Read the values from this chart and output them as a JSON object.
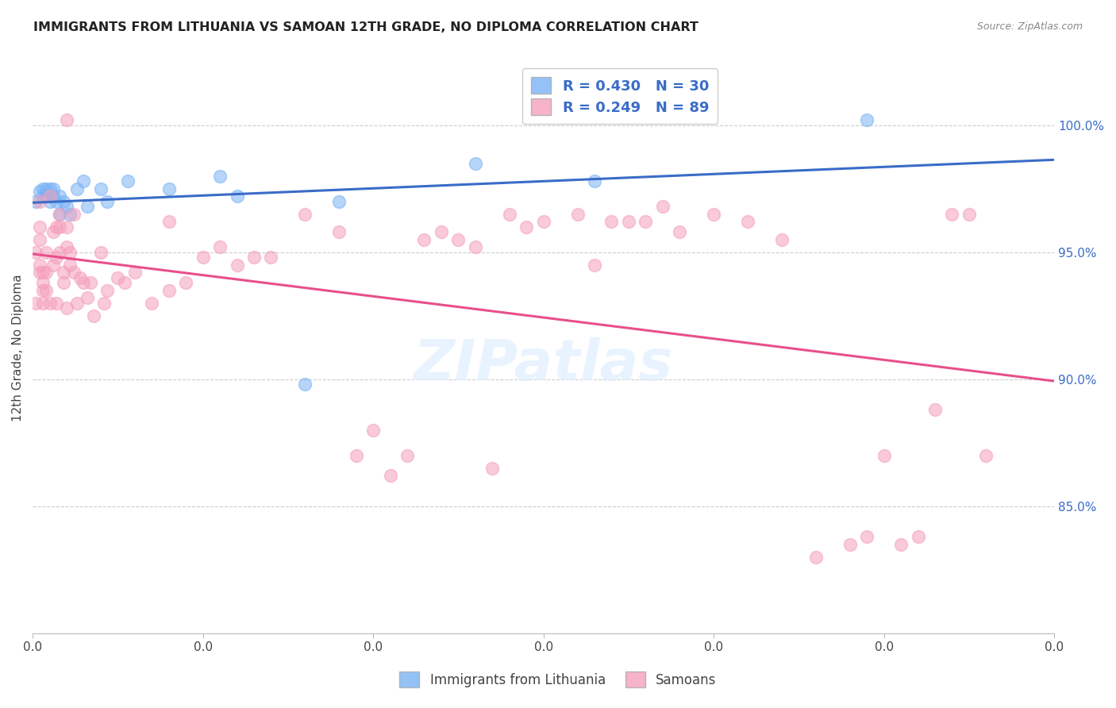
{
  "title": "IMMIGRANTS FROM LITHUANIA VS SAMOAN 12TH GRADE, NO DIPLOMA CORRELATION CHART",
  "source": "Source: ZipAtlas.com",
  "ylabel": "12th Grade, No Diploma",
  "ylabel_right_ticks": [
    "100.0%",
    "95.0%",
    "90.0%",
    "85.0%"
  ],
  "ylabel_right_values": [
    1.0,
    0.95,
    0.9,
    0.85
  ],
  "legend_blue_r": "R = 0.430",
  "legend_blue_n": "N = 30",
  "legend_pink_r": "R = 0.249",
  "legend_pink_n": "N = 89",
  "blue_color": "#7ab3f5",
  "pink_color": "#f5a0bc",
  "blue_line_color": "#3a6cc8",
  "pink_line_color": "#e8508a",
  "legend_label_blue": "Immigrants from Lithuania",
  "legend_label_pink": "Samoans",
  "xlim": [
    0.0,
    0.3
  ],
  "ylim": [
    0.8,
    1.025
  ],
  "blue_x": [
    0.001,
    0.002,
    0.003,
    0.003,
    0.004,
    0.004,
    0.005,
    0.005,
    0.006,
    0.006,
    0.007,
    0.008,
    0.008,
    0.009,
    0.01,
    0.011,
    0.013,
    0.015,
    0.016,
    0.02,
    0.022,
    0.028,
    0.04,
    0.055,
    0.06,
    0.08,
    0.09,
    0.13,
    0.165,
    0.245
  ],
  "blue_y": [
    0.97,
    0.974,
    0.972,
    0.975,
    0.975,
    0.972,
    0.975,
    0.97,
    0.975,
    0.972,
    0.97,
    0.972,
    0.965,
    0.97,
    0.968,
    0.965,
    0.975,
    0.978,
    0.968,
    0.975,
    0.97,
    0.978,
    0.975,
    0.98,
    0.972,
    0.898,
    0.97,
    0.985,
    0.978,
    1.002
  ],
  "pink_x": [
    0.001,
    0.001,
    0.002,
    0.002,
    0.002,
    0.003,
    0.003,
    0.003,
    0.004,
    0.004,
    0.005,
    0.005,
    0.006,
    0.006,
    0.007,
    0.007,
    0.008,
    0.008,
    0.009,
    0.009,
    0.01,
    0.01,
    0.011,
    0.011,
    0.012,
    0.013,
    0.014,
    0.015,
    0.016,
    0.017,
    0.018,
    0.02,
    0.021,
    0.022,
    0.025,
    0.027,
    0.03,
    0.035,
    0.04,
    0.045,
    0.05,
    0.055,
    0.06,
    0.065,
    0.07,
    0.08,
    0.09,
    0.095,
    0.1,
    0.105,
    0.11,
    0.115,
    0.12,
    0.125,
    0.13,
    0.135,
    0.14,
    0.145,
    0.15,
    0.16,
    0.165,
    0.17,
    0.175,
    0.18,
    0.185,
    0.19,
    0.2,
    0.21,
    0.22,
    0.23,
    0.24,
    0.245,
    0.25,
    0.255,
    0.26,
    0.265,
    0.27,
    0.275,
    0.28,
    0.002,
    0.004,
    0.007,
    0.008,
    0.01,
    0.012,
    0.01,
    0.04,
    0.003,
    0.002
  ],
  "pink_y": [
    0.93,
    0.95,
    0.96,
    0.942,
    0.955,
    0.93,
    0.938,
    0.942,
    0.935,
    0.942,
    0.972,
    0.93,
    0.958,
    0.945,
    0.96,
    0.948,
    0.96,
    0.95,
    0.942,
    0.938,
    0.952,
    0.928,
    0.945,
    0.95,
    0.942,
    0.93,
    0.94,
    0.938,
    0.932,
    0.938,
    0.925,
    0.95,
    0.93,
    0.935,
    0.94,
    0.938,
    0.942,
    0.93,
    0.935,
    0.938,
    0.948,
    0.952,
    0.945,
    0.948,
    0.948,
    0.965,
    0.958,
    0.87,
    0.88,
    0.862,
    0.87,
    0.955,
    0.958,
    0.955,
    0.952,
    0.865,
    0.965,
    0.96,
    0.962,
    0.965,
    0.945,
    0.962,
    0.962,
    0.962,
    0.968,
    0.958,
    0.965,
    0.962,
    0.955,
    0.83,
    0.835,
    0.838,
    0.87,
    0.835,
    0.838,
    0.888,
    0.965,
    0.965,
    0.87,
    0.945,
    0.95,
    0.93,
    0.965,
    1.002,
    0.965,
    0.96,
    0.962,
    0.935,
    0.97
  ]
}
